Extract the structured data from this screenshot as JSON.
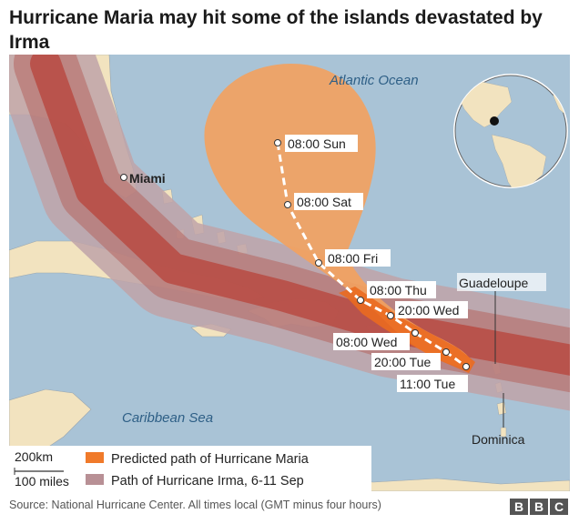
{
  "title": "Hurricane Maria may hit some of the islands devastated by Irma",
  "source": "Source: National Hurricane Center. All times local (GMT minus four hours)",
  "brand": [
    "B",
    "B",
    "C"
  ],
  "colors": {
    "sea": "#a9c3d6",
    "land": "#f2e3bf",
    "maria_cone": "#f3a15e",
    "maria_track": "#ea6a20",
    "irma_outer": "#c0a3a8",
    "irma_inner": "#c45a4f",
    "irma_core": "#b8433a"
  },
  "map": {
    "ocean_labels": [
      "Atlantic Ocean",
      "Caribbean Sea"
    ],
    "places": [
      "Miami",
      "Guadeloupe",
      "Dominica"
    ],
    "forecast_points": [
      {
        "label": "08:00 Sun"
      },
      {
        "label": "08:00 Sat"
      },
      {
        "label": "08:00 Fri"
      },
      {
        "label": "08:00 Thu"
      },
      {
        "label": "20:00 Wed"
      },
      {
        "label": "08:00 Wed"
      },
      {
        "label": "20:00 Tue"
      },
      {
        "label": "11:00 Tue"
      }
    ]
  },
  "scale": {
    "km": "200km",
    "miles": "100 miles"
  },
  "legend": [
    {
      "label": "Predicted path of Hurricane Maria",
      "color": "#f07a2a"
    },
    {
      "label": "Path of Hurricane Irma, 6-11 Sep",
      "color": "#b89095"
    }
  ]
}
